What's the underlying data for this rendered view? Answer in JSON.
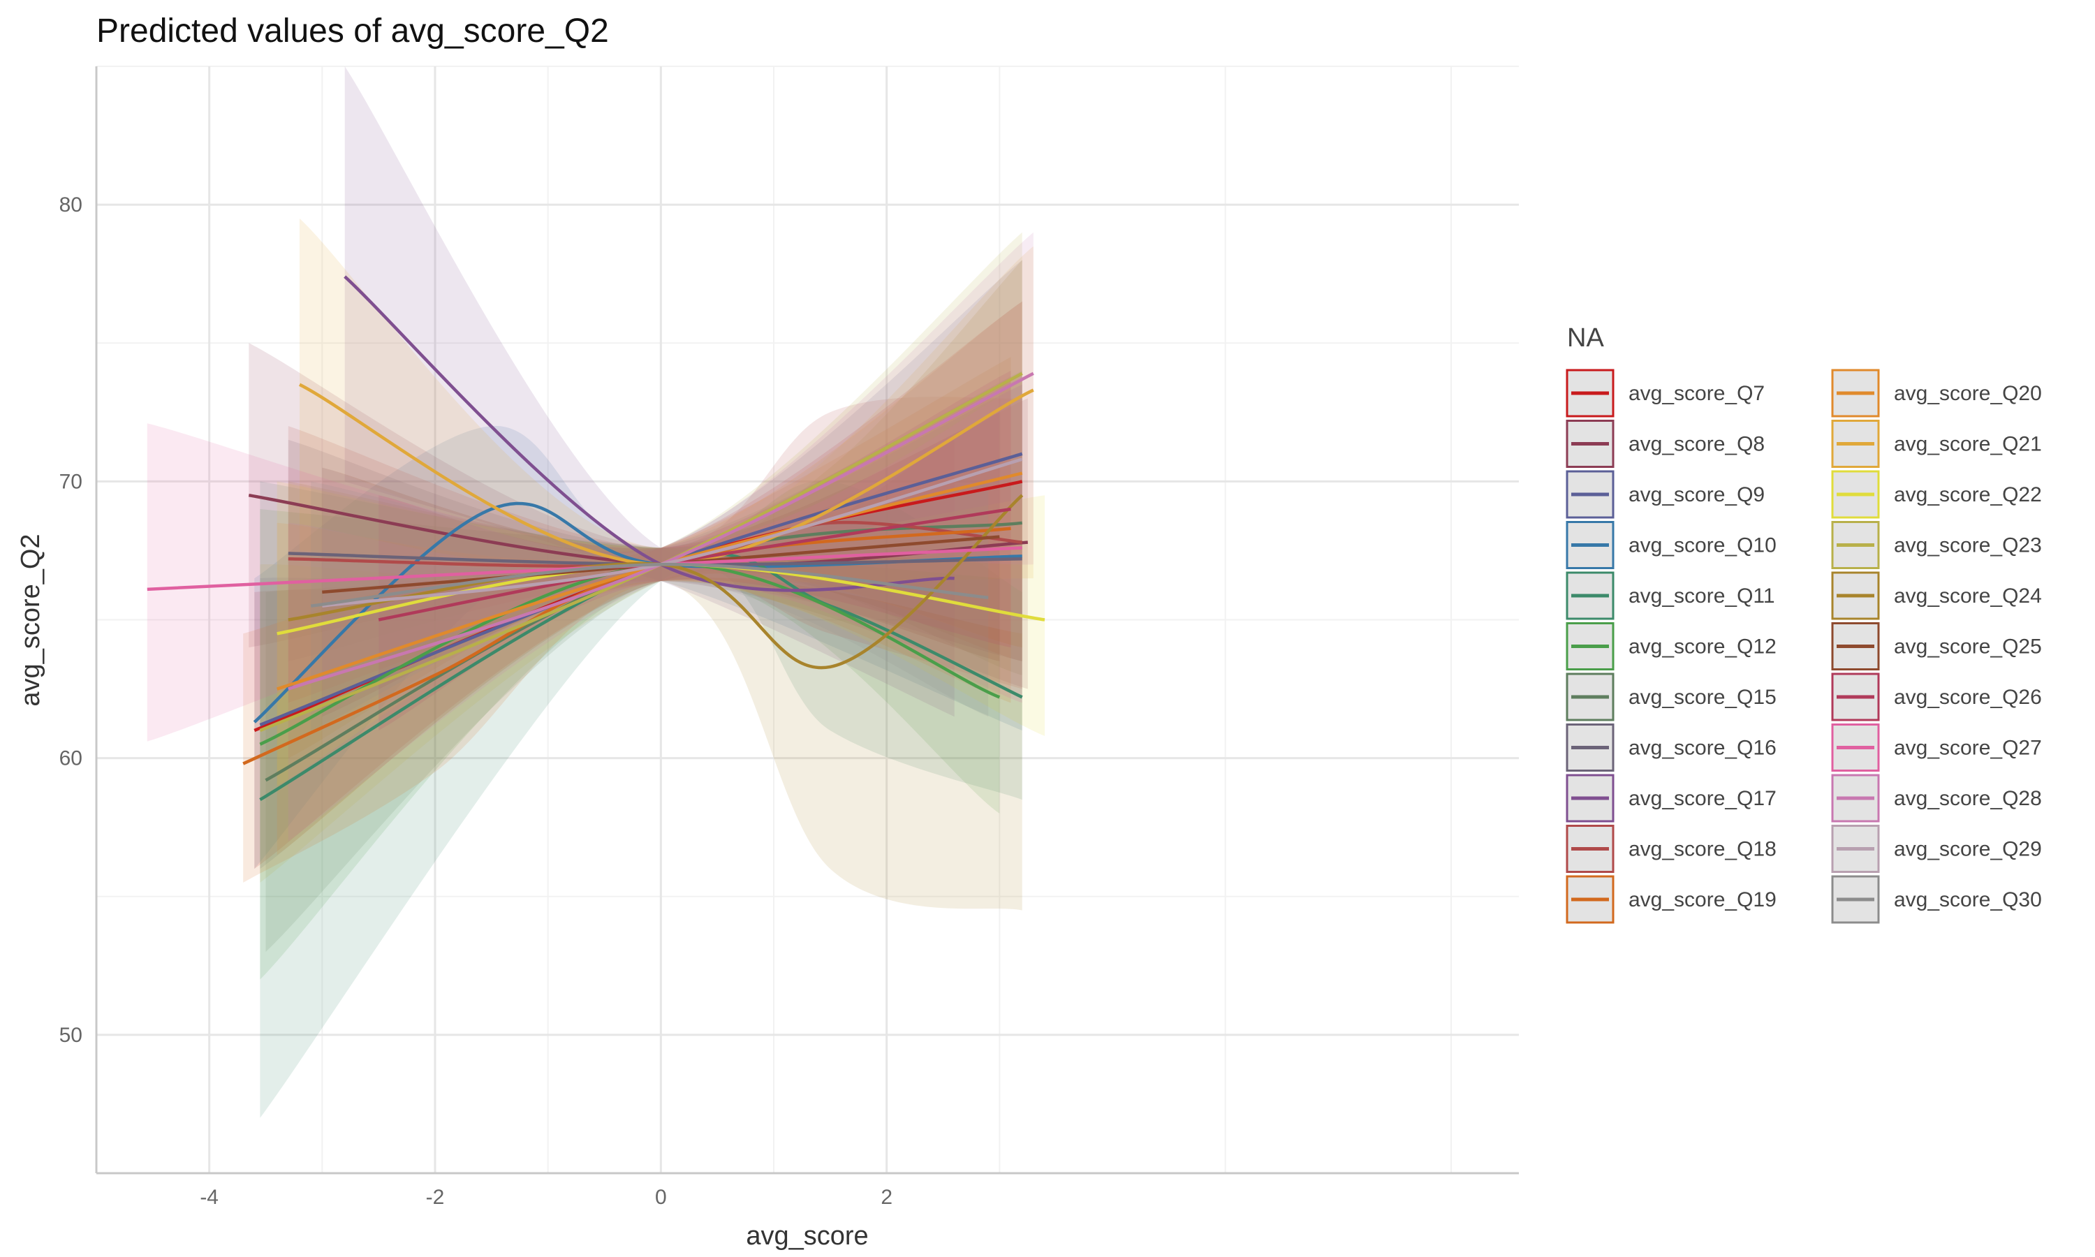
{
  "chart_data": {
    "type": "line",
    "title": "Predicted values of avg_score_Q2",
    "xlabel": "avg_score",
    "ylabel": "avg_score_Q2",
    "xlim": [
      -5,
      7.6
    ],
    "ylim": [
      45,
      85
    ],
    "x_ticks": [
      -4,
      -2,
      0,
      2
    ],
    "y_ticks": [
      50,
      60,
      70,
      80
    ],
    "grid": true,
    "legend_title": "NA",
    "legend_position": "right",
    "series": [
      {
        "name": "avg_score_Q7",
        "color": "#C81A1C",
        "x": [
          -3.6,
          0,
          3.2
        ],
        "y": [
          61.0,
          67.0,
          70.0
        ],
        "band": [
          [
            56.0,
            66.0
          ],
          [
            66.4,
            67.6
          ],
          [
            63.5,
            76.5
          ]
        ]
      },
      {
        "name": "avg_score_Q8",
        "color": "#8C3C54",
        "x": [
          -3.65,
          0,
          3.25
        ],
        "y": [
          69.5,
          67.0,
          67.8
        ],
        "band": [
          [
            64.0,
            75.0
          ],
          [
            66.4,
            67.6
          ],
          [
            62.5,
            73.0
          ]
        ]
      },
      {
        "name": "avg_score_Q9",
        "color": "#5B5F97",
        "x": [
          -3.55,
          0,
          3.2
        ],
        "y": [
          61.2,
          67.0,
          71.0
        ],
        "band": [
          [
            56.0,
            66.5
          ],
          [
            66.4,
            67.6
          ],
          [
            64.0,
            78.0
          ]
        ]
      },
      {
        "name": "avg_score_Q10",
        "color": "#3778A8",
        "x": [
          -3.6,
          -1.5,
          0,
          3.2
        ],
        "y": [
          61.3,
          69.0,
          67.0,
          67.3
        ],
        "band": [
          [
            56.0,
            66.5
          ],
          [
            66.0,
            72.0
          ],
          [
            66.4,
            67.6
          ],
          [
            61.0,
            73.5
          ]
        ]
      },
      {
        "name": "avg_score_Q11",
        "color": "#3C8A6A",
        "x": [
          -3.55,
          0,
          1.5,
          3.2
        ],
        "y": [
          58.5,
          67.0,
          65.5,
          62.2
        ],
        "band": [
          [
            47.0,
            70.0
          ],
          [
            66.4,
            67.6
          ],
          [
            61.0,
            70.0
          ],
          [
            58.5,
            66.0
          ]
        ]
      },
      {
        "name": "avg_score_Q12",
        "color": "#4A9E4A",
        "x": [
          -3.55,
          0,
          3.0
        ],
        "y": [
          60.5,
          67.0,
          62.2
        ],
        "band": [
          [
            52.0,
            69.0
          ],
          [
            66.4,
            67.6
          ],
          [
            58.0,
            66.5
          ]
        ]
      },
      {
        "name": "avg_score_Q15",
        "color": "#5E7E5E",
        "x": [
          -3.5,
          0,
          3.2
        ],
        "y": [
          59.2,
          67.0,
          68.5
        ],
        "band": [
          [
            53.0,
            66.0
          ],
          [
            66.4,
            67.6
          ],
          [
            63.0,
            74.0
          ]
        ]
      },
      {
        "name": "avg_score_Q16",
        "color": "#6B6378",
        "x": [
          -3.3,
          0,
          3.2
        ],
        "y": [
          67.4,
          67.0,
          67.2
        ],
        "band": [
          [
            63.5,
            71.5
          ],
          [
            66.4,
            67.6
          ],
          [
            63.5,
            71.0
          ]
        ]
      },
      {
        "name": "avg_score_Q17",
        "color": "#7F4F90",
        "x": [
          -2.8,
          0,
          2.6
        ],
        "y": [
          77.4,
          67.0,
          66.5
        ],
        "band": [
          [
            70.0,
            85.0
          ],
          [
            66.4,
            67.6
          ],
          [
            61.5,
            71.5
          ]
        ]
      },
      {
        "name": "avg_score_Q18",
        "color": "#B04A4A",
        "x": [
          -3.3,
          0,
          1.5,
          3.2
        ],
        "y": [
          67.2,
          67.0,
          68.5,
          67.8
        ],
        "band": [
          [
            62.0,
            72.0
          ],
          [
            66.4,
            67.6
          ],
          [
            64.5,
            72.5
          ],
          [
            62.5,
            73.0
          ]
        ]
      },
      {
        "name": "avg_score_Q19",
        "color": "#D2691E",
        "x": [
          -3.7,
          -2.0,
          0,
          3.1
        ],
        "y": [
          59.8,
          63.0,
          67.0,
          68.3
        ],
        "band": [
          [
            55.5,
            64.5
          ],
          [
            59.5,
            66.5
          ],
          [
            66.4,
            67.6
          ],
          [
            62.0,
            74.5
          ]
        ]
      },
      {
        "name": "avg_score_Q20",
        "color": "#E08A2C",
        "x": [
          -3.4,
          0,
          3.2
        ],
        "y": [
          62.5,
          67.0,
          70.3
        ],
        "band": [
          [
            56.5,
            68.5
          ],
          [
            66.4,
            67.6
          ],
          [
            64.0,
            76.5
          ]
        ]
      },
      {
        "name": "avg_score_Q21",
        "color": "#E0A83A",
        "x": [
          -3.2,
          0,
          3.3
        ],
        "y": [
          73.5,
          67.0,
          73.3
        ],
        "band": [
          [
            67.5,
            79.5
          ],
          [
            66.4,
            67.6
          ],
          [
            66.5,
            78.5
          ]
        ]
      },
      {
        "name": "avg_score_Q22",
        "color": "#E0DC3C",
        "x": [
          -3.4,
          0,
          3.4
        ],
        "y": [
          64.5,
          67.0,
          65.0
        ],
        "band": [
          [
            59.0,
            70.0
          ],
          [
            66.4,
            67.6
          ],
          [
            60.8,
            69.5
          ]
        ]
      },
      {
        "name": "avg_score_Q23",
        "color": "#B8B04A",
        "x": [
          -3.55,
          0,
          3.2
        ],
        "y": [
          61.0,
          67.0,
          73.9
        ],
        "band": [
          [
            55.5,
            67.0
          ],
          [
            66.4,
            67.6
          ],
          [
            67.5,
            79.0
          ]
        ]
      },
      {
        "name": "avg_score_Q24",
        "color": "#A8842C",
        "x": [
          -3.3,
          0,
          1.5,
          3.2
        ],
        "y": [
          65.0,
          67.0,
          63.3,
          69.5
        ],
        "band": [
          [
            60.0,
            70.0
          ],
          [
            66.4,
            67.6
          ],
          [
            56.0,
            70.5
          ],
          [
            54.5,
            78.0
          ]
        ]
      },
      {
        "name": "avg_score_Q25",
        "color": "#8E4A2E",
        "x": [
          -3.0,
          0,
          3.0
        ],
        "y": [
          66.0,
          67.0,
          68.0
        ],
        "band": [
          [
            61.5,
            70.5
          ],
          [
            66.4,
            67.6
          ],
          [
            63.5,
            72.5
          ]
        ]
      },
      {
        "name": "avg_score_Q26",
        "color": "#B03A5A",
        "x": [
          -2.5,
          0,
          3.1
        ],
        "y": [
          65.0,
          67.0,
          69.0
        ],
        "band": [
          [
            61.0,
            69.5
          ],
          [
            66.4,
            67.6
          ],
          [
            64.0,
            74.0
          ]
        ]
      },
      {
        "name": "avg_score_Q27",
        "color": "#E060A0",
        "x": [
          -4.55,
          0,
          3.2
        ],
        "y": [
          66.1,
          67.0,
          67.6
        ],
        "band": [
          [
            60.6,
            72.1
          ],
          [
            66.4,
            67.6
          ],
          [
            62.0,
            73.5
          ]
        ]
      },
      {
        "name": "avg_score_Q28",
        "color": "#C878B0",
        "x": [
          -3.3,
          0,
          3.3
        ],
        "y": [
          62.5,
          67.0,
          73.9
        ],
        "band": [
          [
            57.0,
            68.5
          ],
          [
            66.4,
            67.6
          ],
          [
            67.0,
            79.0
          ]
        ]
      },
      {
        "name": "avg_score_Q29",
        "color": "#B8A0B0",
        "x": [
          -3.0,
          0,
          3.2
        ],
        "y": [
          65.5,
          67.0,
          70.8
        ],
        "band": [
          [
            60.5,
            70.5
          ],
          [
            66.4,
            67.6
          ],
          [
            64.5,
            76.5
          ]
        ]
      },
      {
        "name": "avg_score_Q30",
        "color": "#8C8C8C",
        "x": [
          -3.1,
          0,
          2.9
        ],
        "y": [
          65.5,
          67.0,
          65.8
        ],
        "band": [
          [
            61.0,
            70.0
          ],
          [
            66.4,
            67.6
          ],
          [
            61.5,
            70.0
          ]
        ]
      }
    ]
  }
}
